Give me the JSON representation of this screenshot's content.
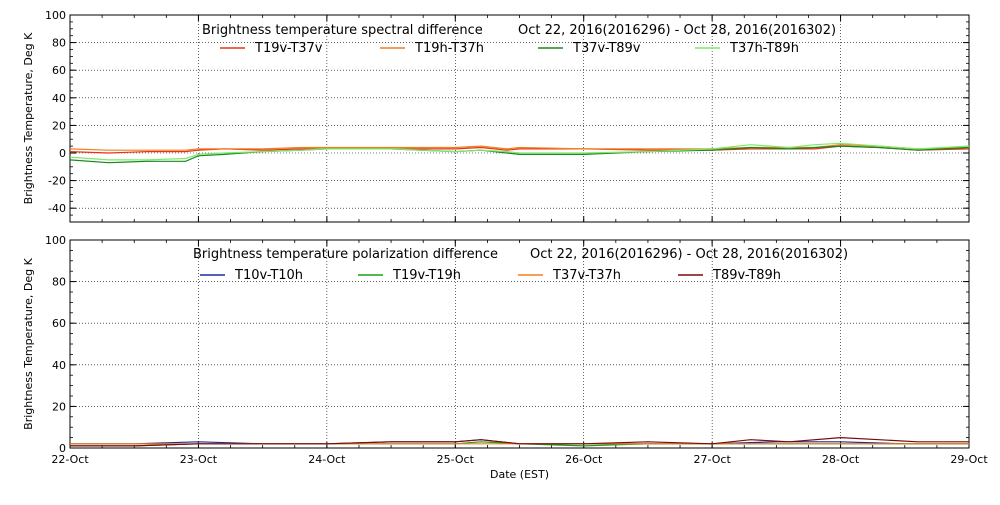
{
  "chart_data": [
    {
      "type": "line",
      "title": "Brightness temperature spectral difference",
      "date_range": "Oct 22, 2016(2016296) - Oct 28, 2016(2016302)",
      "ylabel": "Brightness Temperature, Deg K",
      "xlabel": "",
      "ylim": [
        -50,
        100
      ],
      "xlim": [
        0,
        7
      ],
      "yticks": [
        -40,
        -20,
        0,
        20,
        40,
        60,
        80,
        100
      ],
      "grid": true,
      "legend_position": "top",
      "series": [
        {
          "name": "T19v-T37v",
          "color": "#e8321a",
          "x": [
            0,
            0.3,
            0.6,
            0.9,
            1.0,
            1.2,
            1.5,
            1.8,
            2.0,
            2.5,
            3.0,
            3.2,
            3.4,
            3.5,
            4.0,
            4.5,
            5.0,
            5.3,
            5.6,
            5.8,
            6.0,
            6.3,
            6.6,
            7.0
          ],
          "y": [
            1,
            0,
            1,
            1,
            2,
            3,
            2,
            3,
            3,
            3,
            3,
            4,
            2,
            3,
            3,
            2,
            2,
            3,
            3,
            3,
            5,
            4,
            2,
            3
          ]
        },
        {
          "name": "T19h-T37h",
          "color": "#f07f1e",
          "x": [
            0,
            0.3,
            0.6,
            0.9,
            1.0,
            1.2,
            1.5,
            1.8,
            2.0,
            2.5,
            3.0,
            3.2,
            3.4,
            3.5,
            4.0,
            4.5,
            5.0,
            5.3,
            5.6,
            5.8,
            6.0,
            6.3,
            6.6,
            7.0
          ],
          "y": [
            3,
            2,
            2,
            2,
            3,
            3,
            3,
            4,
            4,
            4,
            4,
            5,
            3,
            4,
            3,
            3,
            3,
            4,
            4,
            4,
            6,
            5,
            3,
            4
          ]
        },
        {
          "name": "T37v-T89v",
          "color": "#18881e",
          "x": [
            0,
            0.3,
            0.6,
            0.9,
            1.0,
            1.2,
            1.5,
            1.8,
            2.0,
            2.5,
            3.0,
            3.2,
            3.4,
            3.5,
            4.0,
            4.5,
            5.0,
            5.3,
            5.6,
            5.8,
            6.0,
            6.3,
            6.6,
            7.0
          ],
          "y": [
            -5,
            -7,
            -6,
            -6,
            -2,
            -1,
            1,
            2,
            3,
            3,
            1,
            2,
            0,
            -1,
            -1,
            1,
            2,
            4,
            3,
            4,
            5,
            4,
            2,
            4
          ]
        },
        {
          "name": "T37h-T89h",
          "color": "#7ee86c",
          "x": [
            0,
            0.3,
            0.6,
            0.9,
            1.0,
            1.2,
            1.5,
            1.8,
            2.0,
            2.5,
            3.0,
            3.2,
            3.4,
            3.5,
            4.0,
            4.5,
            5.0,
            5.3,
            5.6,
            5.8,
            6.0,
            6.3,
            6.6,
            7.0
          ],
          "y": [
            -3,
            -5,
            -5,
            -4,
            -1,
            0,
            1,
            2,
            3,
            3,
            1,
            2,
            1,
            0,
            0,
            1,
            3,
            6,
            4,
            6,
            7,
            5,
            3,
            5
          ]
        }
      ]
    },
    {
      "type": "line",
      "title": "Brightness temperature polarization difference",
      "date_range": "Oct 22, 2016(2016296) - Oct 28, 2016(2016302)",
      "ylabel": "Brightness Temperature, Deg K",
      "xlabel": "Date (EST)",
      "ylim": [
        0,
        100
      ],
      "xlim": [
        0,
        7
      ],
      "yticks": [
        0,
        20,
        40,
        60,
        80,
        100
      ],
      "xtick_labels": [
        "22-Oct",
        "23-Oct",
        "24-Oct",
        "25-Oct",
        "26-Oct",
        "27-Oct",
        "28-Oct",
        "29-Oct"
      ],
      "grid": true,
      "legend_position": "top",
      "series": [
        {
          "name": "T10v-T10h",
          "color": "#1c2aa0",
          "x": [
            0,
            0.5,
            1.0,
            1.5,
            2.0,
            2.5,
            3.0,
            3.2,
            3.5,
            4.0,
            4.5,
            5.0,
            5.5,
            6.0,
            6.5,
            7.0
          ],
          "y": [
            2,
            2,
            3,
            2,
            2,
            3,
            3,
            4,
            2,
            2,
            2,
            2,
            3,
            3,
            2,
            2
          ]
        },
        {
          "name": "T19v-T19h",
          "color": "#18a018",
          "x": [
            0,
            0.5,
            1.0,
            1.5,
            2.0,
            2.5,
            3.0,
            3.2,
            3.5,
            4.0,
            4.5,
            5.0,
            5.5,
            6.0,
            6.5,
            7.0
          ],
          "y": [
            1,
            1,
            2,
            2,
            2,
            2,
            2,
            3,
            2,
            1,
            2,
            2,
            2,
            2,
            2,
            2
          ]
        },
        {
          "name": "T37v-T37h",
          "color": "#f07f1e",
          "x": [
            0,
            0.5,
            1.0,
            1.5,
            2.0,
            2.5,
            3.0,
            3.2,
            3.5,
            4.0,
            4.5,
            5.0,
            5.5,
            6.0,
            6.5,
            7.0
          ],
          "y": [
            2,
            2,
            2,
            2,
            2,
            2,
            2,
            2,
            2,
            2,
            2,
            2,
            2,
            2,
            2,
            2
          ]
        },
        {
          "name": "T89v-T89h",
          "color": "#7a0a0a",
          "x": [
            0,
            0.5,
            1.0,
            1.5,
            2.0,
            2.5,
            3.0,
            3.2,
            3.5,
            4.0,
            4.5,
            5.0,
            5.3,
            5.6,
            6.0,
            6.3,
            6.6,
            7.0
          ],
          "y": [
            1,
            1,
            2,
            2,
            2,
            3,
            3,
            4,
            2,
            2,
            3,
            2,
            4,
            3,
            5,
            4,
            3,
            3
          ]
        }
      ]
    }
  ]
}
